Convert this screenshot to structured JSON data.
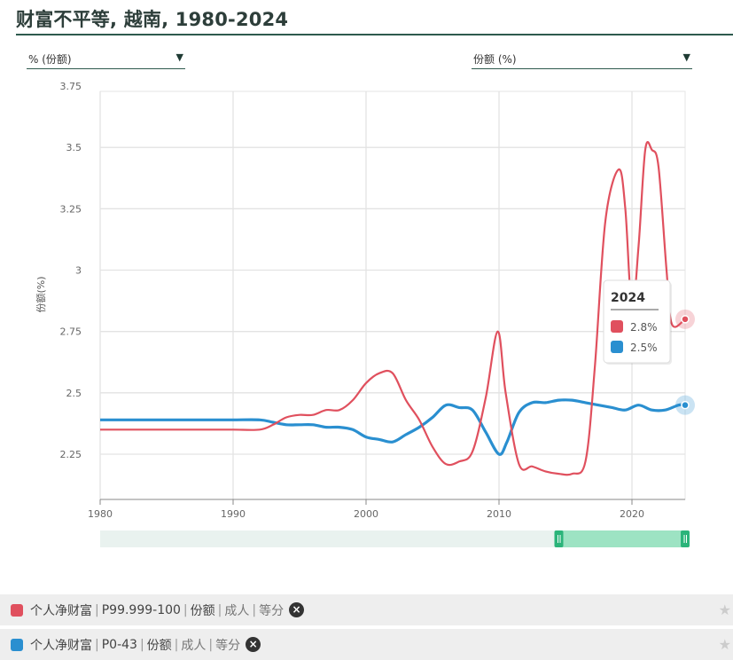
{
  "page": {
    "title": "财富不平等, 越南, 1980-2024"
  },
  "controls": {
    "left_dropdown": "% (份额)",
    "right_dropdown": "份额 (%)",
    "dropdown_arrow": "▼"
  },
  "tooltip": {
    "year": "2024",
    "entries": [
      "2.8%",
      "2.5%"
    ]
  },
  "legend": [
    {
      "color": "#e0505e",
      "parts": [
        "个人净财富",
        "P99.999-100",
        "份额",
        "成人",
        "等分"
      ],
      "sep": "|",
      "remove_icon": "×",
      "star_icon": "★"
    },
    {
      "color": "#2a8fd0",
      "parts": [
        "个人净财富",
        "P0-43",
        "份额",
        "成人",
        "等分"
      ],
      "sep": "|",
      "remove_icon": "×",
      "star_icon": "★"
    }
  ],
  "chart_data": {
    "type": "line",
    "ylabel": "份额(%)",
    "xlim": [
      1980,
      2024
    ],
    "ylim": [
      2.15,
      3.75
    ],
    "x_ticks": [
      1980,
      1990,
      2000,
      2010,
      2020
    ],
    "y_ticks": [
      2.25,
      2.5,
      2.75,
      3,
      3.25,
      3.5,
      3.75
    ],
    "y_tick_labels": [
      "2.25",
      "2.5",
      "2.75",
      "3",
      "3.25",
      "3.5",
      "3.75"
    ],
    "grid": true,
    "series": [
      {
        "name": "个人净财富 | P99.999-100 | 份额 | 成人 | 等分",
        "color": "#e0505e",
        "points": [
          [
            1980,
            2.35
          ],
          [
            1982,
            2.35
          ],
          [
            1984,
            2.35
          ],
          [
            1986,
            2.35
          ],
          [
            1988,
            2.35
          ],
          [
            1990,
            2.35
          ],
          [
            1992,
            2.35
          ],
          [
            1993,
            2.37
          ],
          [
            1994,
            2.4
          ],
          [
            1995,
            2.41
          ],
          [
            1996,
            2.41
          ],
          [
            1997,
            2.43
          ],
          [
            1998,
            2.43
          ],
          [
            1999,
            2.47
          ],
          [
            2000,
            2.54
          ],
          [
            2001,
            2.58
          ],
          [
            2002,
            2.58
          ],
          [
            2003,
            2.47
          ],
          [
            2004,
            2.39
          ],
          [
            2005,
            2.28
          ],
          [
            2006,
            2.21
          ],
          [
            2007,
            2.22
          ],
          [
            2008,
            2.26
          ],
          [
            2009,
            2.48
          ],
          [
            2009.9,
            2.75
          ],
          [
            2010.5,
            2.5
          ],
          [
            2011.5,
            2.21
          ],
          [
            2012.5,
            2.2
          ],
          [
            2013.5,
            2.18
          ],
          [
            2014.5,
            2.17
          ],
          [
            2015.5,
            2.17
          ],
          [
            2016.5,
            2.22
          ],
          [
            2017.2,
            2.6
          ],
          [
            2018,
            3.2
          ],
          [
            2019,
            3.41
          ],
          [
            2019.5,
            3.25
          ],
          [
            2020,
            2.84
          ],
          [
            2020.5,
            3.1
          ],
          [
            2021,
            3.49
          ],
          [
            2021.5,
            3.49
          ],
          [
            2022,
            3.42
          ],
          [
            2022.6,
            3.0
          ],
          [
            2023,
            2.78
          ],
          [
            2024,
            2.8
          ]
        ]
      },
      {
        "name": "个人净财富 | P0-43 | 份额 | 成人 | 等分",
        "color": "#2a8fd0",
        "points": [
          [
            1980,
            2.39
          ],
          [
            1982,
            2.39
          ],
          [
            1984,
            2.39
          ],
          [
            1986,
            2.39
          ],
          [
            1988,
            2.39
          ],
          [
            1990,
            2.39
          ],
          [
            1992,
            2.39
          ],
          [
            1993,
            2.38
          ],
          [
            1994,
            2.37
          ],
          [
            1995,
            2.37
          ],
          [
            1996,
            2.37
          ],
          [
            1997,
            2.36
          ],
          [
            1998,
            2.36
          ],
          [
            1999,
            2.35
          ],
          [
            2000,
            2.32
          ],
          [
            2001,
            2.31
          ],
          [
            2002,
            2.3
          ],
          [
            2003,
            2.33
          ],
          [
            2004,
            2.36
          ],
          [
            2005,
            2.4
          ],
          [
            2006,
            2.45
          ],
          [
            2007,
            2.44
          ],
          [
            2008,
            2.43
          ],
          [
            2009,
            2.34
          ],
          [
            2010,
            2.25
          ],
          [
            2010.6,
            2.3
          ],
          [
            2011.5,
            2.42
          ],
          [
            2012.5,
            2.46
          ],
          [
            2013.5,
            2.46
          ],
          [
            2014.5,
            2.47
          ],
          [
            2015.5,
            2.47
          ],
          [
            2016.5,
            2.46
          ],
          [
            2017.5,
            2.45
          ],
          [
            2018.5,
            2.44
          ],
          [
            2019.5,
            2.43
          ],
          [
            2020.5,
            2.45
          ],
          [
            2021.5,
            2.43
          ],
          [
            2022.5,
            2.43
          ],
          [
            2023.5,
            2.45
          ],
          [
            2024,
            2.45
          ]
        ]
      }
    ],
    "range_selector": {
      "from": 2014.5,
      "to": 2024
    }
  }
}
